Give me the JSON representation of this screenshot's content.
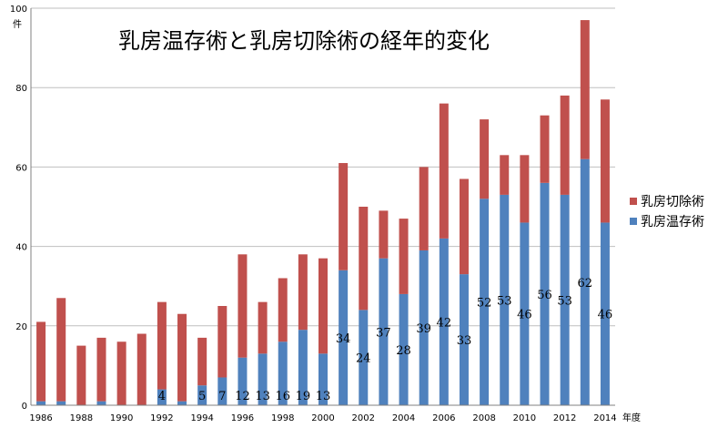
{
  "chart_data": {
    "type": "bar",
    "stacked": true,
    "title": "乳房温存術と乳房切除術の経年的変化",
    "y_unit_label": "件",
    "x_unit_label": "年度",
    "ylim": [
      0,
      100
    ],
    "y_ticks": [
      0,
      20,
      40,
      60,
      80,
      100
    ],
    "grid": true,
    "legend_position": "right",
    "categories": [
      "1986",
      "1987",
      "1988",
      "1989",
      "1990",
      "1991",
      "1992",
      "1993",
      "1994",
      "1995",
      "1996",
      "1997",
      "1998",
      "1999",
      "2000",
      "2001",
      "2002",
      "2003",
      "2004",
      "2005",
      "2006",
      "2007",
      "2008",
      "2009",
      "2010",
      "2011",
      "2012",
      "2013",
      "2014"
    ],
    "x_tick_labels": [
      "1986",
      "",
      "1988",
      "",
      "1990",
      "",
      "1992",
      "",
      "1994",
      "",
      "1996",
      "",
      "1998",
      "",
      "2000",
      "",
      "2002",
      "",
      "2004",
      "",
      "2006",
      "",
      "2008",
      "",
      "2010",
      "",
      "2012",
      "",
      "2014"
    ],
    "series": [
      {
        "name": "乳房温存術",
        "color": "#4f81bd",
        "values": [
          1,
          1,
          0,
          1,
          0,
          0,
          4,
          1,
          5,
          7,
          12,
          13,
          16,
          19,
          13,
          34,
          24,
          37,
          28,
          39,
          42,
          33,
          52,
          53,
          46,
          56,
          53,
          62,
          46
        ],
        "labels": [
          "",
          "",
          "",
          "",
          "",
          "",
          "4",
          "",
          "5",
          "7",
          "12",
          "13",
          "16",
          "19",
          "13",
          "34",
          "24",
          "37",
          "28",
          "39",
          "42",
          "33",
          "52",
          "53",
          "46",
          "56",
          "53",
          "62",
          "46"
        ]
      },
      {
        "name": "乳房切除術",
        "color": "#c0504d",
        "values": [
          20,
          26,
          15,
          16,
          16,
          18,
          22,
          22,
          12,
          18,
          26,
          13,
          16,
          19,
          24,
          27,
          26,
          12,
          19,
          21,
          34,
          24,
          20,
          10,
          17,
          17,
          25,
          35,
          31
        ]
      }
    ]
  }
}
